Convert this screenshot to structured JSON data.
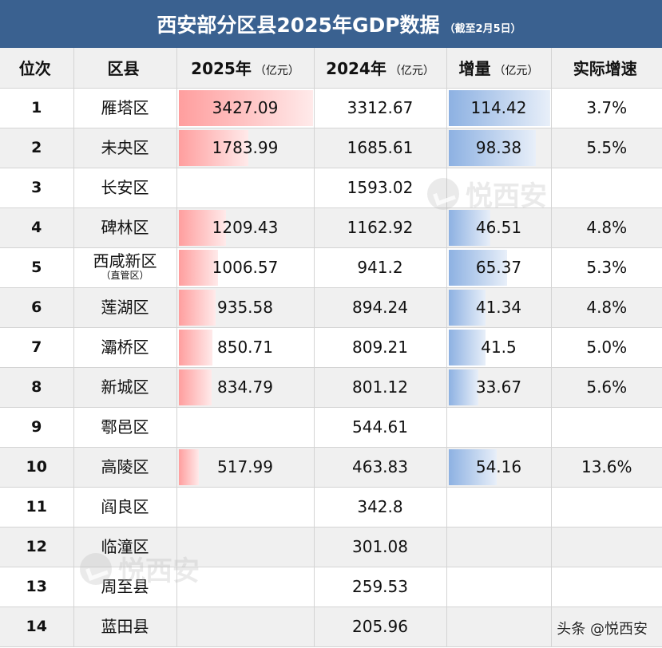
{
  "title": {
    "main": "西安部分区县2025年GDP数据",
    "note": "（截至2月5日）",
    "background_color": "#3a6190"
  },
  "headers": [
    {
      "label": "位次",
      "unit": ""
    },
    {
      "label": "区县",
      "unit": ""
    },
    {
      "label": "2025年",
      "unit": "（亿元）"
    },
    {
      "label": "2024年",
      "unit": "（亿元）"
    },
    {
      "label": "增量",
      "unit": "（亿元）"
    },
    {
      "label": "实际增速",
      "unit": ""
    }
  ],
  "rows": [
    {
      "rank": "1",
      "name": "雁塔区",
      "sub": "",
      "gdp2025": "3427.09",
      "gdp2024": "3312.67",
      "increase": "114.42",
      "growth": "3.7%"
    },
    {
      "rank": "2",
      "name": "未央区",
      "sub": "",
      "gdp2025": "1783.99",
      "gdp2024": "1685.61",
      "increase": "98.38",
      "growth": "5.5%"
    },
    {
      "rank": "3",
      "name": "长安区",
      "sub": "",
      "gdp2025": "",
      "gdp2024": "1593.02",
      "increase": "",
      "growth": ""
    },
    {
      "rank": "4",
      "name": "碑林区",
      "sub": "",
      "gdp2025": "1209.43",
      "gdp2024": "1162.92",
      "increase": "46.51",
      "growth": "4.8%"
    },
    {
      "rank": "5",
      "name": "西咸新区",
      "sub": "（直管区）",
      "gdp2025": "1006.57",
      "gdp2024": "941.2",
      "increase": "65.37",
      "growth": "5.3%"
    },
    {
      "rank": "6",
      "name": "莲湖区",
      "sub": "",
      "gdp2025": "935.58",
      "gdp2024": "894.24",
      "increase": "41.34",
      "growth": "4.8%"
    },
    {
      "rank": "7",
      "name": "灞桥区",
      "sub": "",
      "gdp2025": "850.71",
      "gdp2024": "809.21",
      "increase": "41.5",
      "growth": "5.0%"
    },
    {
      "rank": "8",
      "name": "新城区",
      "sub": "",
      "gdp2025": "834.79",
      "gdp2024": "801.12",
      "increase": "33.67",
      "growth": "5.6%"
    },
    {
      "rank": "9",
      "name": "鄠邑区",
      "sub": "",
      "gdp2025": "",
      "gdp2024": "544.61",
      "increase": "",
      "growth": ""
    },
    {
      "rank": "10",
      "name": "高陵区",
      "sub": "",
      "gdp2025": "517.99",
      "gdp2024": "463.83",
      "increase": "54.16",
      "growth": "13.6%"
    },
    {
      "rank": "11",
      "name": "阎良区",
      "sub": "",
      "gdp2025": "",
      "gdp2024": "342.8",
      "increase": "",
      "growth": ""
    },
    {
      "rank": "12",
      "name": "临潼区",
      "sub": "",
      "gdp2025": "",
      "gdp2024": "301.08",
      "increase": "",
      "growth": ""
    },
    {
      "rank": "13",
      "name": "周至县",
      "sub": "",
      "gdp2025": "",
      "gdp2024": "259.53",
      "increase": "",
      "growth": ""
    },
    {
      "rank": "14",
      "name": "蓝田县",
      "sub": "",
      "gdp2025": "",
      "gdp2024": "205.96",
      "increase": "",
      "growth": ""
    }
  ],
  "bar_colors": {
    "gdp2025": "#ff9e9e",
    "increase": "#8db1e2"
  },
  "watermark": {
    "text": "悦西安",
    "icon": "yuexian-logo-icon"
  },
  "attribution": "头条 @悦西安"
}
